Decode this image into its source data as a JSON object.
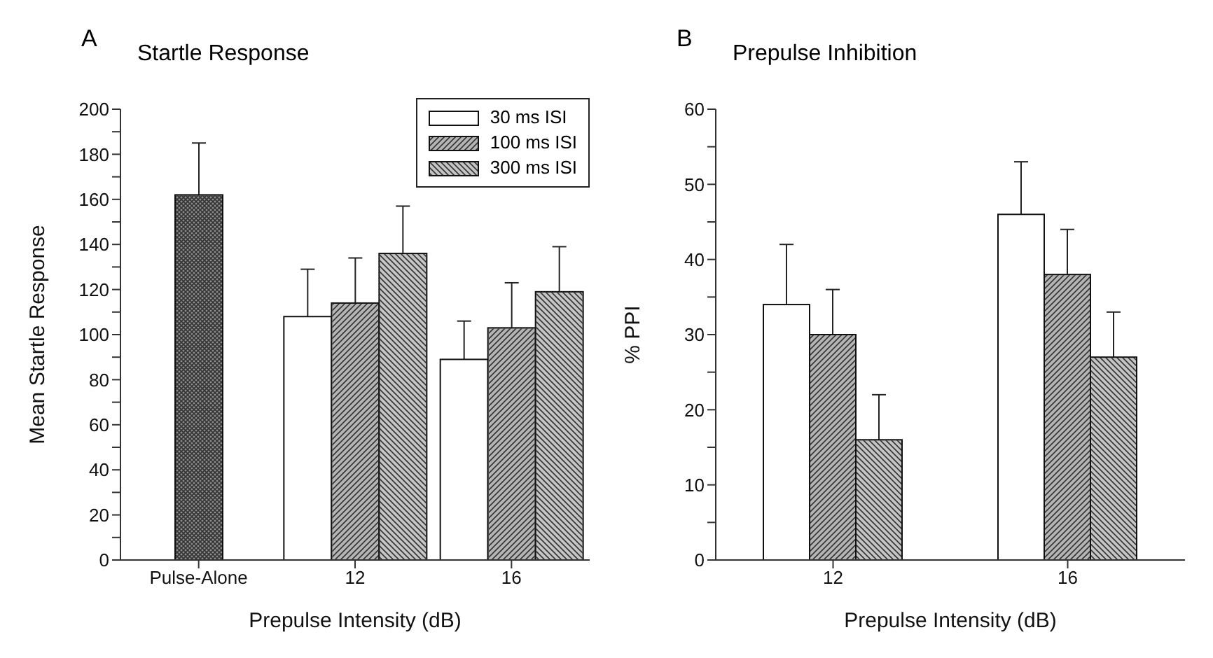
{
  "chart_data": [
    {
      "type": "bar",
      "title": "Startle Response",
      "annotations": [
        "A"
      ],
      "xlabel": "Prepulse Intensity (dB)",
      "ylabel": "Mean Startle Response",
      "categories": [
        "Pulse-Alone",
        "12",
        "16"
      ],
      "series": [
        {
          "color": "#8c8c8c",
          "values": [
            162,
            null,
            null
          ],
          "errors": [
            23,
            null,
            null
          ]
        },
        {
          "name": "30 ms ISI",
          "color": "#ffffff",
          "values": [
            null,
            108,
            89
          ],
          "errors": [
            null,
            21,
            17
          ]
        },
        {
          "name": "100 ms ISI",
          "color": "#b4b4b4",
          "values": [
            null,
            114,
            103
          ],
          "errors": [
            null,
            20,
            20
          ]
        },
        {
          "name": "300 ms ISI",
          "color": "#c4c4c4",
          "values": [
            null,
            136,
            119
          ],
          "errors": [
            null,
            21,
            20
          ]
        }
      ],
      "ylim": [
        0,
        200
      ],
      "yticks": [
        0,
        {
          "value": 10,
          "label": null
        },
        20,
        {
          "value": 30,
          "label": null
        },
        40,
        {
          "value": 50,
          "label": null
        },
        60,
        {
          "value": 70,
          "label": null
        },
        80,
        {
          "value": 90,
          "label": null
        },
        100,
        {
          "value": 110,
          "label": null
        },
        120,
        {
          "value": 130,
          "label": null
        },
        140,
        {
          "value": 150,
          "label": null
        },
        160,
        {
          "value": 170,
          "label": null
        },
        180,
        {
          "value": 190,
          "label": null
        },
        200
      ],
      "legend": "top right",
      "grid": false
    },
    {
      "type": "bar",
      "title": "Prepulse Inhibition",
      "annotations": [
        "B"
      ],
      "xlabel": "Prepulse Intensity (dB)",
      "ylabel": "% PPI",
      "categories": [
        "12",
        "16"
      ],
      "series": [
        {
          "color": "#ffffff",
          "values": [
            34,
            46
          ],
          "errors": [
            8,
            7
          ]
        },
        {
          "color": "#b4b4b4",
          "values": [
            30,
            38
          ],
          "errors": [
            6,
            6
          ]
        },
        {
          "color": "#c4c4c4",
          "values": [
            16,
            27
          ],
          "errors": [
            6,
            6
          ]
        }
      ],
      "ylim": [
        0,
        60
      ],
      "yticks": [
        0,
        {
          "value": 5,
          "label": null
        },
        10,
        {
          "value": 15,
          "label": null
        },
        20,
        {
          "value": 25,
          "label": null
        },
        30,
        {
          "value": 35,
          "label": null
        },
        40,
        {
          "value": 45,
          "label": null
        },
        50,
        {
          "value": 55,
          "label": null
        },
        60
      ],
      "legend": false,
      "grid": false
    }
  ]
}
